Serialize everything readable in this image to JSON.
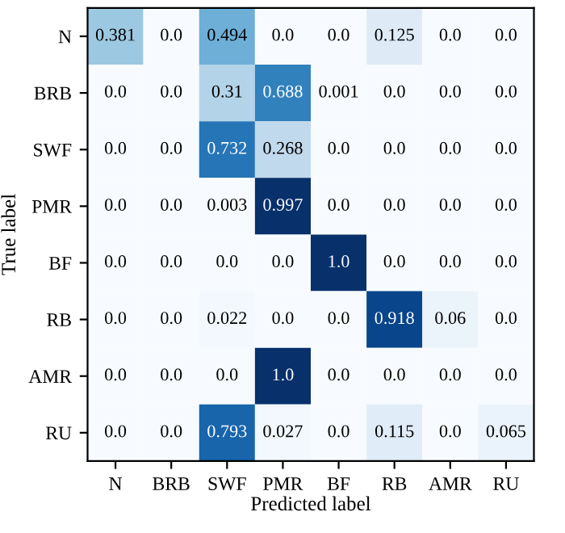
{
  "chart_data": {
    "type": "heatmap",
    "xlabel": "Predicted label",
    "ylabel": "True label",
    "categories": [
      "N",
      "BRB",
      "SWF",
      "PMR",
      "BF",
      "RB",
      "AMR",
      "RU"
    ],
    "y_categories": [
      "N",
      "BRB",
      "SWF",
      "PMR",
      "BF",
      "RB",
      "AMR",
      "RU"
    ],
    "cells": [
      [
        0.381,
        0.0,
        0.494,
        0.0,
        0.0,
        0.125,
        0.0,
        0.0
      ],
      [
        0.0,
        0.0,
        0.31,
        0.688,
        0.001,
        0.0,
        0.0,
        0.0
      ],
      [
        0.0,
        0.0,
        0.732,
        0.268,
        0.0,
        0.0,
        0.0,
        0.0
      ],
      [
        0.0,
        0.0,
        0.003,
        0.997,
        0.0,
        0.0,
        0.0,
        0.0
      ],
      [
        0.0,
        0.0,
        0.0,
        0.0,
        1.0,
        0.0,
        0.0,
        0.0
      ],
      [
        0.0,
        0.0,
        0.022,
        0.0,
        0.0,
        0.918,
        0.06,
        0.0
      ],
      [
        0.0,
        0.0,
        0.0,
        1.0,
        0.0,
        0.0,
        0.0,
        0.0
      ],
      [
        0.0,
        0.0,
        0.793,
        0.027,
        0.0,
        0.115,
        0.0,
        0.065
      ]
    ],
    "cell_labels": [
      [
        "0.381",
        "0.0",
        "0.494",
        "0.0",
        "0.0",
        "0.125",
        "0.0",
        "0.0"
      ],
      [
        "0.0",
        "0.0",
        "0.31",
        "0.688",
        "0.001",
        "0.0",
        "0.0",
        "0.0"
      ],
      [
        "0.0",
        "0.0",
        "0.732",
        "0.268",
        "0.0",
        "0.0",
        "0.0",
        "0.0"
      ],
      [
        "0.0",
        "0.0",
        "0.003",
        "0.997",
        "0.0",
        "0.0",
        "0.0",
        "0.0"
      ],
      [
        "0.0",
        "0.0",
        "0.0",
        "0.0",
        "1.0",
        "0.0",
        "0.0",
        "0.0"
      ],
      [
        "0.0",
        "0.0",
        "0.022",
        "0.0",
        "0.0",
        "0.918",
        "0.06",
        "0.0"
      ],
      [
        "0.0",
        "0.0",
        "0.0",
        "1.0",
        "0.0",
        "0.0",
        "0.0",
        "0.0"
      ],
      [
        "0.0",
        "0.0",
        "0.793",
        "0.027",
        "0.0",
        "0.115",
        "0.0",
        "0.065"
      ]
    ]
  }
}
